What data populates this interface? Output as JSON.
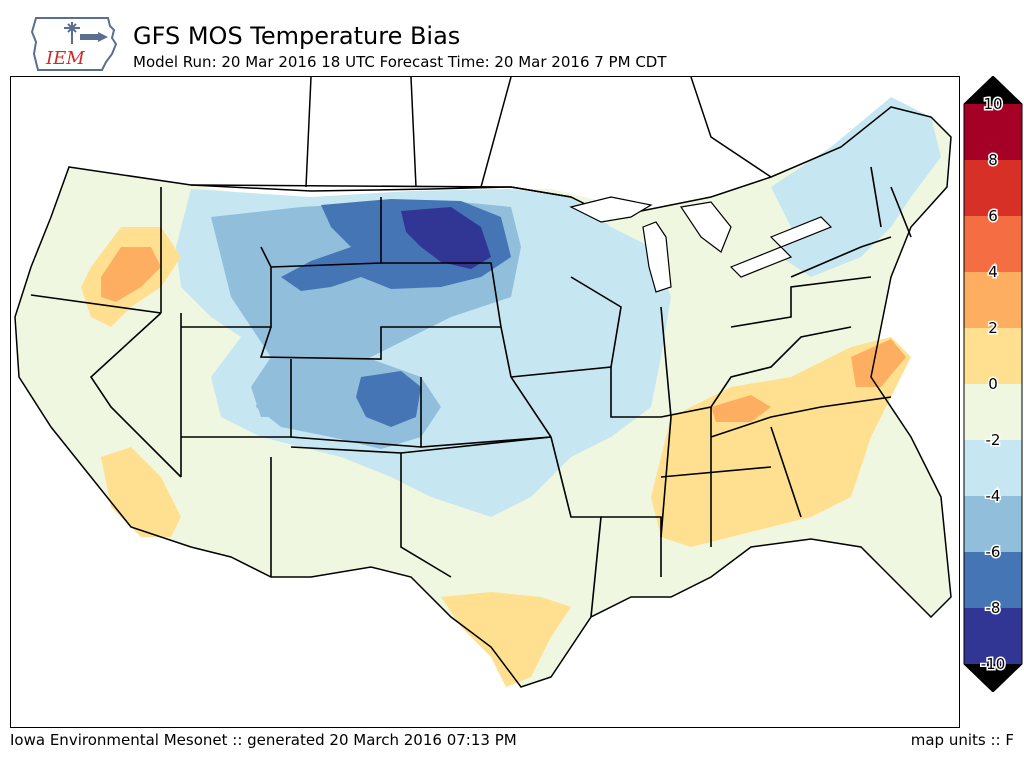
{
  "header": {
    "title": "GFS MOS Temperature Bias",
    "subtitle": "Model Run: 20 Mar 2016 18 UTC Forecast Time: 20 Mar 2016 7 PM CDT"
  },
  "logo": {
    "text": "IEM"
  },
  "colorbar": {
    "labels": [
      "10",
      "8",
      "6",
      "4",
      "2",
      "0",
      "-2",
      "-4",
      "-6",
      "-8",
      "-10"
    ],
    "colors": [
      "#a50026",
      "#d73027",
      "#f46d43",
      "#fdae61",
      "#fee090",
      "#f0f7e0",
      "#c6e6f2",
      "#91bfdb",
      "#4575b4",
      "#313695"
    ]
  },
  "footer": {
    "left": "Iowa Environmental Mesonet :: generated 20 March 2016 07:13 PM",
    "right": "map units :: F"
  }
}
